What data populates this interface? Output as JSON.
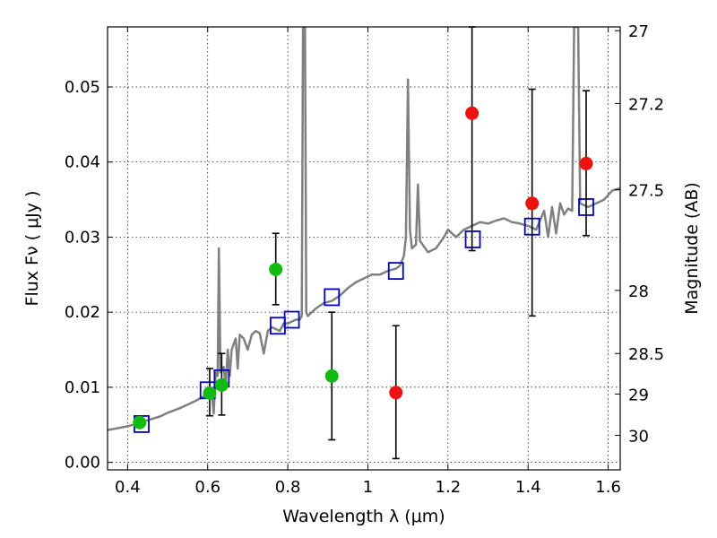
{
  "chart_data": {
    "type": "scatter",
    "title": "",
    "xlabel": "Wavelength  λ (μm)",
    "ylabel": "Flux  Fν  ( μJy )",
    "ylabel_right": "Magnitude (AB)",
    "xlim": [
      0.35,
      1.63
    ],
    "ylim": [
      -0.001,
      0.058
    ],
    "grid": true,
    "x_ticks": [
      0.4,
      0.6,
      0.8,
      1.0,
      1.2,
      1.4,
      1.6
    ],
    "x_tick_labels": [
      "0.4",
      "0.6",
      "0.8",
      "1",
      "1.2",
      "1.4",
      "1.6"
    ],
    "y_ticks": [
      0.0,
      0.01,
      0.02,
      0.03,
      0.04,
      0.05
    ],
    "y_tick_labels": [
      "0.00",
      "0.01",
      "0.02",
      "0.03",
      "0.04",
      "0.05"
    ],
    "right_axis_labels": [
      {
        "label": "27",
        "flux": 0.0575
      },
      {
        "label": "27.2",
        "flux": 0.0478
      },
      {
        "label": "27.5",
        "flux": 0.0363
      },
      {
        "label": "28",
        "flux": 0.0229
      },
      {
        "label": "28.5",
        "flux": 0.0145
      },
      {
        "label": "29",
        "flux": 0.0091
      },
      {
        "label": "30",
        "flux": 0.0036
      }
    ],
    "series": [
      {
        "kind": "line",
        "color": "#808080",
        "points": [
          [
            0.35,
            0.0043
          ],
          [
            0.38,
            0.0046
          ],
          [
            0.4,
            0.0048
          ],
          [
            0.42,
            0.0051
          ],
          [
            0.45,
            0.0056
          ],
          [
            0.48,
            0.0061
          ],
          [
            0.5,
            0.0066
          ],
          [
            0.53,
            0.0072
          ],
          [
            0.55,
            0.0077
          ],
          [
            0.57,
            0.0082
          ],
          [
            0.59,
            0.0088
          ],
          [
            0.6,
            0.009
          ],
          [
            0.61,
            0.0093
          ],
          [
            0.615,
            0.0065
          ],
          [
            0.62,
            0.012
          ],
          [
            0.625,
            0.0115
          ],
          [
            0.628,
            0.0285
          ],
          [
            0.632,
            0.012
          ],
          [
            0.64,
            0.0127
          ],
          [
            0.645,
            0.01
          ],
          [
            0.65,
            0.015
          ],
          [
            0.655,
            0.0115
          ],
          [
            0.66,
            0.015
          ],
          [
            0.67,
            0.0165
          ],
          [
            0.675,
            0.0125
          ],
          [
            0.68,
            0.017
          ],
          [
            0.69,
            0.0165
          ],
          [
            0.7,
            0.015
          ],
          [
            0.71,
            0.017
          ],
          [
            0.72,
            0.0175
          ],
          [
            0.73,
            0.0172
          ],
          [
            0.74,
            0.0145
          ],
          [
            0.75,
            0.0175
          ],
          [
            0.76,
            0.018
          ],
          [
            0.78,
            0.0175
          ],
          [
            0.79,
            0.0185
          ],
          [
            0.8,
            0.0185
          ],
          [
            0.82,
            0.019
          ],
          [
            0.83,
            0.019
          ],
          [
            0.835,
            0.0195
          ],
          [
            0.838,
            0.058
          ],
          [
            0.843,
            0.058
          ],
          [
            0.846,
            0.02
          ],
          [
            0.85,
            0.0195
          ],
          [
            0.87,
            0.0205
          ],
          [
            0.89,
            0.0212
          ],
          [
            0.91,
            0.0215
          ],
          [
            0.93,
            0.0222
          ],
          [
            0.95,
            0.0232
          ],
          [
            0.97,
            0.024
          ],
          [
            0.99,
            0.0245
          ],
          [
            1.01,
            0.025
          ],
          [
            1.03,
            0.025
          ],
          [
            1.05,
            0.0255
          ],
          [
            1.07,
            0.0258
          ],
          [
            1.08,
            0.0262
          ],
          [
            1.09,
            0.0275
          ],
          [
            1.095,
            0.03
          ],
          [
            1.1,
            0.051
          ],
          [
            1.105,
            0.031
          ],
          [
            1.11,
            0.0285
          ],
          [
            1.12,
            0.029
          ],
          [
            1.125,
            0.037
          ],
          [
            1.13,
            0.0295
          ],
          [
            1.15,
            0.028
          ],
          [
            1.17,
            0.0285
          ],
          [
            1.19,
            0.03
          ],
          [
            1.2,
            0.031
          ],
          [
            1.21,
            0.0305
          ],
          [
            1.22,
            0.03
          ],
          [
            1.24,
            0.031
          ],
          [
            1.26,
            0.0315
          ],
          [
            1.28,
            0.032
          ],
          [
            1.3,
            0.0318
          ],
          [
            1.32,
            0.0322
          ],
          [
            1.34,
            0.0325
          ],
          [
            1.36,
            0.032
          ],
          [
            1.38,
            0.0318
          ],
          [
            1.4,
            0.0315
          ],
          [
            1.42,
            0.031
          ],
          [
            1.44,
            0.0335
          ],
          [
            1.45,
            0.03
          ],
          [
            1.46,
            0.034
          ],
          [
            1.47,
            0.0305
          ],
          [
            1.48,
            0.0345
          ],
          [
            1.49,
            0.033
          ],
          [
            1.5,
            0.0338
          ],
          [
            1.51,
            0.0335
          ],
          [
            1.515,
            0.058
          ],
          [
            1.525,
            0.058
          ],
          [
            1.53,
            0.0345
          ],
          [
            1.55,
            0.034
          ],
          [
            1.57,
            0.0345
          ],
          [
            1.59,
            0.035
          ],
          [
            1.61,
            0.0362
          ],
          [
            1.63,
            0.0365
          ]
        ]
      },
      {
        "kind": "open-square",
        "color": "#0000cc",
        "points": [
          [
            0.435,
            0.0051
          ],
          [
            0.6,
            0.0096
          ],
          [
            0.635,
            0.0112
          ],
          [
            0.775,
            0.0182
          ],
          [
            0.81,
            0.019
          ],
          [
            0.91,
            0.022
          ],
          [
            1.07,
            0.0255
          ],
          [
            1.262,
            0.0297
          ],
          [
            1.41,
            0.0314
          ],
          [
            1.545,
            0.034
          ]
        ]
      },
      {
        "kind": "filled-circle",
        "color": "#11bb11",
        "points": [
          [
            0.43,
            0.0053
          ],
          [
            0.605,
            0.0092
          ],
          [
            0.635,
            0.0103
          ],
          [
            0.77,
            0.0257
          ],
          [
            0.91,
            0.0115
          ]
        ],
        "yerr": [
          null,
          [
            0.0062,
            0.0125
          ],
          [
            0.0063,
            0.0145
          ],
          [
            0.021,
            0.0305
          ],
          [
            0.003,
            0.02
          ]
        ]
      },
      {
        "kind": "filled-circle",
        "color": "#ee1111",
        "points": [
          [
            1.07,
            0.0093
          ],
          [
            1.26,
            0.0465
          ],
          [
            1.41,
            0.0345
          ],
          [
            1.545,
            0.0398
          ]
        ],
        "yerr": [
          [
            0.0005,
            0.0182
          ],
          [
            0.0282,
            0.058
          ],
          [
            0.0195,
            0.0497
          ],
          [
            0.0302,
            0.0495
          ]
        ]
      }
    ]
  }
}
